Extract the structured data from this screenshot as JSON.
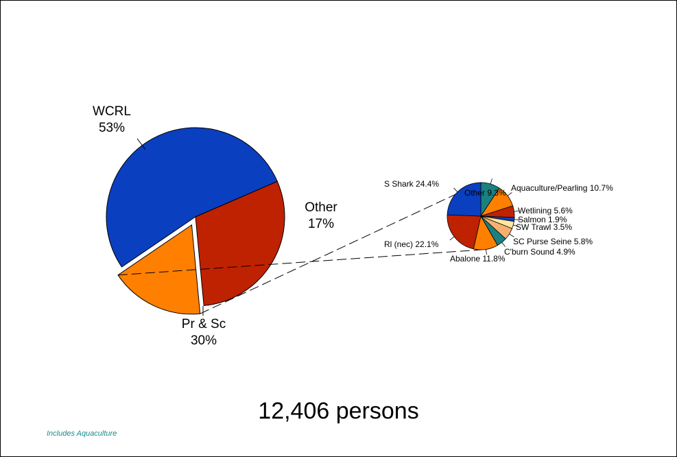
{
  "total_label": "12,406 persons",
  "footnote": "Includes Aquaculture",
  "footnote_color": "#1a8a8a",
  "chart_data": [
    {
      "type": "pie",
      "name": "main",
      "slices": [
        {
          "name": "WCRL",
          "value": 53,
          "label_value": "53%",
          "color": "#0a3fbf"
        },
        {
          "name": "Pr & Sc",
          "value": 30,
          "label_value": "30%",
          "color": "#bf2200"
        },
        {
          "name": "Other",
          "value": 17,
          "label_value": "17%",
          "color": "#ff8000",
          "exploded": true
        }
      ]
    },
    {
      "type": "pie",
      "name": "other-breakdown",
      "slices": [
        {
          "name": "Other",
          "value": 9.3,
          "label": "Other  9.3%",
          "color": "#1a8080"
        },
        {
          "name": "Aquaculture/Pearling",
          "value": 10.7,
          "label": "Aquaculture/Pearling  10.7%",
          "color": "#ff8000"
        },
        {
          "name": "Wetlining",
          "value": 5.6,
          "label": "Wetlining  5.6%",
          "color": "#bf2200"
        },
        {
          "name": "Salmon",
          "value": 1.9,
          "label": "Salmon  1.9%",
          "color": "#0a3fbf"
        },
        {
          "name": "SW Trawl",
          "value": 3.5,
          "label": "SW Trawl  3.5%",
          "color": "#ffe8a0"
        },
        {
          "name": "SC Purse Seine",
          "value": 5.8,
          "label": "SC Purse Seine  5.8%",
          "color": "#f5b070"
        },
        {
          "name": "C'burn Sound",
          "value": 4.9,
          "label": "C'burn Sound  4.9%",
          "color": "#1a8080"
        },
        {
          "name": "Abalone",
          "value": 11.8,
          "label": "Abalone  11.8%",
          "color": "#ff8000"
        },
        {
          "name": "Rl (nec)",
          "value": 22.1,
          "label": "Rl (nec)  22.1%",
          "color": "#bf2200"
        },
        {
          "name": "S Shark",
          "value": 24.4,
          "label": "S Shark  24.4%",
          "color": "#0a3fbf"
        }
      ]
    }
  ]
}
